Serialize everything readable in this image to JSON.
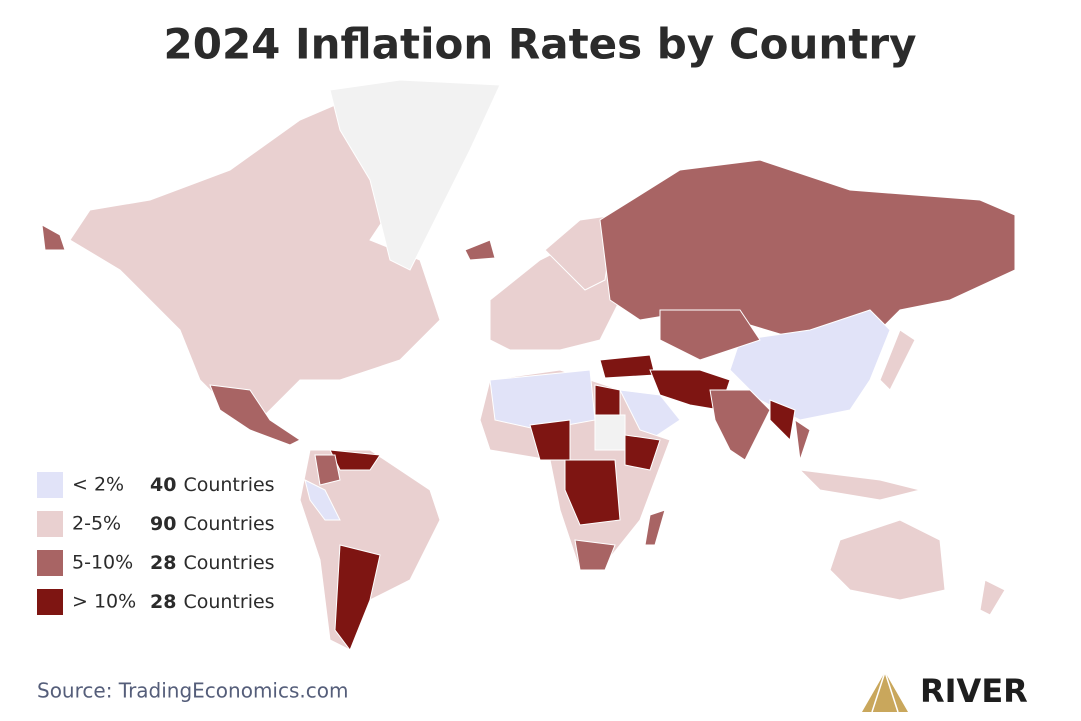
{
  "title": "2024 Inflation Rates by Country",
  "legend": [
    {
      "label": "< 2%",
      "count": "40",
      "unit": "Countries",
      "color": "#e1e3f8"
    },
    {
      "label": "2-5%",
      "count": "90",
      "unit": "Countries",
      "color": "#e9d0d0"
    },
    {
      "label": "5-10%",
      "count": "28",
      "unit": "Countries",
      "color": "#a86464"
    },
    {
      "label": "> 10%",
      "count": "28",
      "unit": "Countries",
      "color": "#7e1512"
    }
  ],
  "source": "Source: TradingEconomics.com",
  "brand": "RIVER"
}
